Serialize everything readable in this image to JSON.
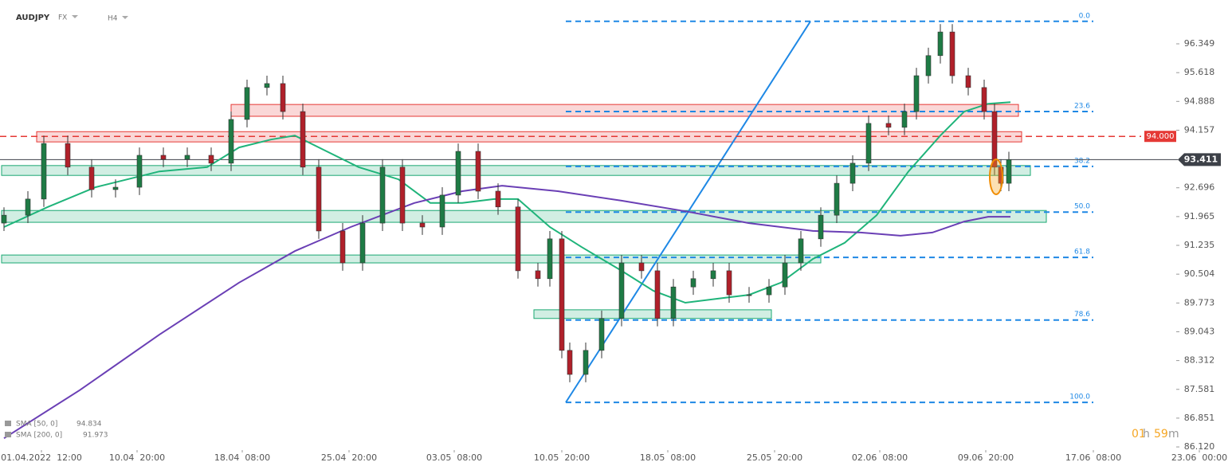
{
  "chart_data": {
    "type": "candlestick",
    "symbol": "AUDJPY",
    "market": "FX",
    "timeframe": "H4",
    "up_color": "#1e7b45",
    "down_color": "#b0202a",
    "xlim": [
      0,
      309.2
    ],
    "ylim": [
      86.04,
      97.461
    ],
    "xticks": [
      {
        "value": 10.4,
        "label": "01.04.2022  12:00"
      },
      {
        "value": 34.4,
        "label": "10.04  20:00"
      },
      {
        "value": 60.8,
        "label": "18.04  08:00"
      },
      {
        "value": 87.6,
        "label": "25.04  20:00"
      },
      {
        "value": 114,
        "label": "03.05  08:00"
      },
      {
        "value": 141,
        "label": "10.05  20:00"
      },
      {
        "value": 167.6,
        "label": "18.05  08:00"
      },
      {
        "value": 194.4,
        "label": "25.05  20:00"
      },
      {
        "value": 220.8,
        "label": "02.06  08:00"
      },
      {
        "value": 247.4,
        "label": "09.06  20:00"
      },
      {
        "value": 274.4,
        "label": "17.06  08:00"
      },
      {
        "value": 301,
        "label": "23.06  00:00"
      }
    ],
    "yticks": [
      96.349,
      95.618,
      94.888,
      94.157,
      92.696,
      91.965,
      91.235,
      90.504,
      89.773,
      89.043,
      88.312,
      87.581,
      86.851,
      {
        "value": 86.12,
        "label": "86.120"
      }
    ],
    "x": [
      1,
      7,
      11,
      17,
      23,
      29,
      35,
      41,
      47,
      53,
      58,
      62,
      67,
      71,
      76,
      80,
      86,
      91,
      96,
      101,
      106,
      111,
      115,
      120,
      125,
      130,
      135,
      138,
      141,
      143,
      147,
      151,
      156,
      161,
      165,
      169,
      174,
      179,
      183,
      188,
      193,
      197,
      201,
      206,
      210,
      214,
      218,
      223,
      227,
      230,
      233,
      236,
      239,
      243,
      247,
      249.6,
      251.2,
      253.2
    ],
    "open": [
      91.8,
      92.0,
      92.41,
      93.82,
      93.22,
      92.65,
      92.71,
      93.52,
      93.42,
      93.52,
      93.32,
      94.43,
      95.24,
      95.34,
      94.63,
      93.22,
      91.6,
      90.79,
      91.8,
      93.22,
      91.8,
      91.7,
      92.51,
      93.62,
      92.61,
      92.21,
      90.59,
      90.39,
      91.4,
      88.57,
      87.96,
      88.57,
      89.38,
      90.79,
      90.59,
      89.38,
      90.18,
      90.39,
      90.59,
      89.98,
      89.98,
      90.18,
      90.79,
      91.4,
      92.0,
      92.81,
      93.32,
      94.33,
      94.23,
      94.63,
      95.54,
      96.05,
      96.65,
      95.54,
      95.24,
      94.63,
      93.22,
      92.81
    ],
    "high": [
      92.2,
      92.61,
      94.02,
      94.02,
      93.42,
      92.91,
      93.72,
      93.72,
      93.72,
      93.72,
      94.63,
      95.44,
      95.54,
      95.54,
      94.83,
      93.42,
      91.8,
      92.0,
      93.42,
      93.42,
      92.0,
      92.71,
      93.82,
      93.82,
      92.81,
      92.41,
      90.79,
      91.6,
      91.6,
      88.77,
      88.77,
      89.58,
      90.99,
      90.99,
      90.79,
      90.38,
      90.59,
      90.79,
      90.79,
      90.18,
      90.38,
      90.99,
      91.6,
      92.2,
      93.01,
      93.52,
      94.53,
      94.53,
      94.83,
      95.74,
      96.25,
      96.85,
      96.85,
      95.74,
      95.44,
      94.83,
      93.42,
      93.61
    ],
    "low": [
      91.6,
      91.8,
      92.21,
      93.02,
      92.45,
      92.45,
      92.51,
      93.22,
      93.22,
      93.12,
      93.12,
      94.23,
      95.04,
      94.43,
      93.02,
      91.4,
      90.59,
      90.59,
      91.6,
      91.6,
      91.5,
      91.5,
      92.31,
      92.41,
      92.01,
      90.39,
      90.19,
      90.19,
      88.37,
      87.76,
      87.76,
      88.37,
      89.18,
      90.39,
      89.18,
      89.18,
      89.98,
      90.19,
      89.78,
      89.78,
      89.78,
      89.98,
      90.59,
      91.2,
      91.8,
      92.61,
      93.12,
      94.03,
      94.03,
      94.43,
      95.34,
      95.85,
      95.34,
      95.04,
      94.43,
      93.02,
      92.61,
      92.61
    ],
    "close": [
      92.0,
      92.41,
      93.82,
      93.22,
      92.65,
      92.71,
      93.52,
      93.42,
      93.52,
      93.32,
      94.43,
      95.24,
      95.34,
      94.63,
      93.22,
      91.6,
      90.79,
      91.8,
      93.22,
      91.8,
      91.7,
      92.51,
      93.62,
      92.61,
      92.21,
      90.59,
      90.39,
      91.4,
      88.57,
      87.96,
      88.57,
      89.38,
      90.79,
      90.59,
      89.38,
      90.18,
      90.39,
      90.59,
      89.98,
      89.98,
      90.18,
      90.79,
      91.4,
      92.0,
      92.81,
      93.32,
      94.33,
      94.23,
      94.63,
      95.54,
      96.05,
      96.65,
      95.54,
      95.24,
      94.63,
      93.22,
      92.81,
      93.41
    ],
    "sma": [
      {
        "name": "SMA  [50,  0]",
        "last": 94.834,
        "color": "#1fb47a",
        "x": [
          1,
          12,
          24,
          40,
          52,
          60,
          68,
          74,
          82,
          90,
          100,
          108,
          116,
          124,
          130,
          138,
          146,
          156,
          164,
          172,
          180,
          188,
          196,
          204,
          212,
          220,
          228,
          236,
          242,
          248,
          253.6
        ],
        "values": [
          91.7,
          92.21,
          92.71,
          93.11,
          93.22,
          93.72,
          93.92,
          94.02,
          93.62,
          93.22,
          92.91,
          92.31,
          92.31,
          92.41,
          92.41,
          91.7,
          91.19,
          90.59,
          90.08,
          89.78,
          89.88,
          89.98,
          90.29,
          90.89,
          91.3,
          92.0,
          93.11,
          94.02,
          94.63,
          94.83,
          94.87
        ]
      },
      {
        "name": "SMA  [200,  0]",
        "last": 91.973,
        "color": "#6a3fb5",
        "x": [
          1,
          20,
          40,
          60,
          74,
          88,
          104,
          116,
          126,
          140,
          156,
          172,
          188,
          204,
          216,
          226,
          234,
          242,
          248,
          253.6
        ],
        "values": [
          86.34,
          87.56,
          88.97,
          90.29,
          91.09,
          91.7,
          92.31,
          92.61,
          92.75,
          92.61,
          92.37,
          92.1,
          91.8,
          91.6,
          91.56,
          91.48,
          91.56,
          91.84,
          91.96,
          91.96
        ]
      }
    ],
    "zones": [
      {
        "from": 58,
        "to": 255.6,
        "low": 94.51,
        "high": 94.81,
        "color": "#e53935"
      },
      {
        "from": 9.2,
        "to": 256.4,
        "low": 93.86,
        "high": 94.12,
        "color": "#e53935"
      },
      {
        "from": 0.4,
        "to": 258.6,
        "low": 93.01,
        "high": 93.26,
        "color": "#1aa872"
      },
      {
        "from": 0.4,
        "to": 262.6,
        "low": 91.82,
        "high": 92.12,
        "color": "#1aa872"
      },
      {
        "from": 0.4,
        "to": 206,
        "low": 90.79,
        "high": 90.99,
        "color": "#1aa872"
      },
      {
        "from": 134,
        "to": 193.6,
        "low": 89.38,
        "high": 89.6,
        "color": "#1aa872"
      }
    ],
    "fib": {
      "color": "#1e88e5",
      "from": 142,
      "to": 274.4,
      "levels": [
        {
          "ratio": "0.0",
          "price": 96.92
        },
        {
          "ratio": "23.6",
          "price": 94.63
        },
        {
          "ratio": "38.2",
          "price": 93.24
        },
        {
          "ratio": "50.0",
          "price": 92.08
        },
        {
          "ratio": "61.8",
          "price": 90.93
        },
        {
          "ratio": "78.6",
          "price": 89.34
        },
        {
          "ratio": "100.0",
          "price": 87.25
        }
      ]
    },
    "trendline": {
      "color": "#1e88e5",
      "x": [
        142,
        203.4
      ],
      "values": [
        87.25,
        96.92
      ]
    },
    "level_line": {
      "value": 94,
      "label": "94.000",
      "color": "#e53935"
    },
    "last_price": {
      "value": 93.411,
      "color": "#3d4148"
    },
    "timer": {
      "hours": "01",
      "h": "h",
      "minutes": "59",
      "m": "m"
    }
  }
}
